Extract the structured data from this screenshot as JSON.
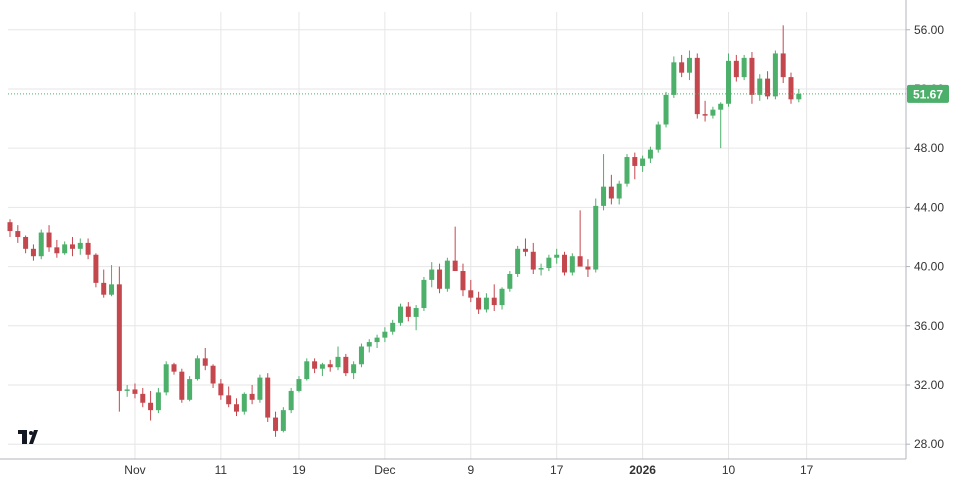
{
  "chart_data": {
    "type": "candlestick",
    "y_axis": {
      "min": 27.0,
      "max": 57.2,
      "ticks": [
        "28.00",
        "32.00",
        "36.00",
        "40.00",
        "44.00",
        "48.00",
        "52.00",
        "56.00"
      ],
      "tick_values": [
        28,
        32,
        36,
        40,
        44,
        48,
        52,
        56
      ],
      "position": "right"
    },
    "x_axis": {
      "labels": [
        "Nov",
        "11",
        "19",
        "Dec",
        "9",
        "17",
        "2026",
        "10",
        "17"
      ],
      "label_bar_index": [
        16,
        27,
        37,
        48,
        59,
        70,
        81,
        92,
        102
      ],
      "bold_labels": [
        "2026"
      ]
    },
    "last_price": {
      "label": "51.67",
      "value": 51.67,
      "color": "#4caf6a"
    },
    "colors": {
      "up": "#4caf6a",
      "down": "#c4474e",
      "grid": "#e6e6e6",
      "axis_text": "#333333"
    },
    "grid": true,
    "bars": [
      [
        43.0,
        43.2,
        42.0,
        42.4
      ],
      [
        42.4,
        42.8,
        41.6,
        42.0
      ],
      [
        42.0,
        42.1,
        40.9,
        41.2
      ],
      [
        41.2,
        41.5,
        40.4,
        40.7
      ],
      [
        40.7,
        42.5,
        40.5,
        42.3
      ],
      [
        42.3,
        42.8,
        41.0,
        41.3
      ],
      [
        41.3,
        41.8,
        40.6,
        40.9
      ],
      [
        40.9,
        41.7,
        40.8,
        41.5
      ],
      [
        41.5,
        42.0,
        40.7,
        41.2
      ],
      [
        41.2,
        41.9,
        40.8,
        41.6
      ],
      [
        41.6,
        41.9,
        40.5,
        40.8
      ],
      [
        40.8,
        40.9,
        38.6,
        38.9
      ],
      [
        38.9,
        39.8,
        37.9,
        38.1
      ],
      [
        38.1,
        40.1,
        38.0,
        38.8
      ],
      [
        38.8,
        40.0,
        30.2,
        31.6
      ],
      [
        31.6,
        32.0,
        31.2,
        31.7
      ],
      [
        31.7,
        32.1,
        31.1,
        31.4
      ],
      [
        31.4,
        31.8,
        30.5,
        30.8
      ],
      [
        30.8,
        31.6,
        29.6,
        30.3
      ],
      [
        30.3,
        31.8,
        30.1,
        31.5
      ],
      [
        31.5,
        33.6,
        31.3,
        33.4
      ],
      [
        33.4,
        33.5,
        32.7,
        32.9
      ],
      [
        32.9,
        33.1,
        30.8,
        31.0
      ],
      [
        31.0,
        32.6,
        30.9,
        32.4
      ],
      [
        32.4,
        34.0,
        32.3,
        33.8
      ],
      [
        33.8,
        34.5,
        33.0,
        33.3
      ],
      [
        33.3,
        33.4,
        31.8,
        32.1
      ],
      [
        32.1,
        32.4,
        31.0,
        31.3
      ],
      [
        31.3,
        31.9,
        30.5,
        30.7
      ],
      [
        30.7,
        31.1,
        29.9,
        30.2
      ],
      [
        30.2,
        31.5,
        30.0,
        31.4
      ],
      [
        31.4,
        32.0,
        30.7,
        31.0
      ],
      [
        31.0,
        32.7,
        30.8,
        32.5
      ],
      [
        32.5,
        32.8,
        29.5,
        29.8
      ],
      [
        29.8,
        30.2,
        28.5,
        28.9
      ],
      [
        28.9,
        30.5,
        28.8,
        30.3
      ],
      [
        30.3,
        31.8,
        30.1,
        31.6
      ],
      [
        31.6,
        32.6,
        31.5,
        32.4
      ],
      [
        32.4,
        33.8,
        32.3,
        33.6
      ],
      [
        33.6,
        33.8,
        32.8,
        33.1
      ],
      [
        33.1,
        33.5,
        32.6,
        33.4
      ],
      [
        33.4,
        33.7,
        32.9,
        33.2
      ],
      [
        33.2,
        34.6,
        33.0,
        33.9
      ],
      [
        33.9,
        34.1,
        32.6,
        32.8
      ],
      [
        32.8,
        33.6,
        32.4,
        33.4
      ],
      [
        33.4,
        34.8,
        33.2,
        34.6
      ],
      [
        34.6,
        35.1,
        34.2,
        34.9
      ],
      [
        34.9,
        35.4,
        34.5,
        35.2
      ],
      [
        35.2,
        35.9,
        34.9,
        35.6
      ],
      [
        35.6,
        36.4,
        35.4,
        36.2
      ],
      [
        36.2,
        37.5,
        36.0,
        37.3
      ],
      [
        37.3,
        37.6,
        36.3,
        36.6
      ],
      [
        36.6,
        37.4,
        35.7,
        37.2
      ],
      [
        37.2,
        39.3,
        37.0,
        39.1
      ],
      [
        39.1,
        40.3,
        38.6,
        39.8
      ],
      [
        39.8,
        40.2,
        38.2,
        38.5
      ],
      [
        38.5,
        40.6,
        38.3,
        40.4
      ],
      [
        40.4,
        42.7,
        40.2,
        39.7
      ],
      [
        39.7,
        40.2,
        38.0,
        38.4
      ],
      [
        38.4,
        39.1,
        37.6,
        37.9
      ],
      [
        37.9,
        38.3,
        36.8,
        37.1
      ],
      [
        37.1,
        38.2,
        36.9,
        37.9
      ],
      [
        37.9,
        38.8,
        37.0,
        37.4
      ],
      [
        37.4,
        38.6,
        37.1,
        38.5
      ],
      [
        38.5,
        39.7,
        38.3,
        39.5
      ],
      [
        39.5,
        41.4,
        39.3,
        41.2
      ],
      [
        41.2,
        41.9,
        40.7,
        41.0
      ],
      [
        41.0,
        41.6,
        39.5,
        39.8
      ],
      [
        39.8,
        40.2,
        39.4,
        39.9
      ],
      [
        39.9,
        40.8,
        39.7,
        40.6
      ],
      [
        40.6,
        41.2,
        40.2,
        40.8
      ],
      [
        40.8,
        41.0,
        39.4,
        39.6
      ],
      [
        39.6,
        40.9,
        39.4,
        40.7
      ],
      [
        40.7,
        43.8,
        40.5,
        40.0
      ],
      [
        40.0,
        40.5,
        39.3,
        39.8
      ],
      [
        39.8,
        44.6,
        39.6,
        44.1
      ],
      [
        44.1,
        47.6,
        43.8,
        45.4
      ],
      [
        45.4,
        46.2,
        44.2,
        44.6
      ],
      [
        44.6,
        45.8,
        44.2,
        45.6
      ],
      [
        45.6,
        47.6,
        45.4,
        47.4
      ],
      [
        47.4,
        47.7,
        45.9,
        46.8
      ],
      [
        46.8,
        47.5,
        46.4,
        47.3
      ],
      [
        47.3,
        48.1,
        47.0,
        47.9
      ],
      [
        47.9,
        49.8,
        47.7,
        49.6
      ],
      [
        49.6,
        51.8,
        49.4,
        51.6
      ],
      [
        51.6,
        54.2,
        51.4,
        53.8
      ],
      [
        53.8,
        54.3,
        52.8,
        53.1
      ],
      [
        53.1,
        54.6,
        52.6,
        54.1
      ],
      [
        54.1,
        54.4,
        50.0,
        50.3
      ],
      [
        50.3,
        51.2,
        49.8,
        50.2
      ],
      [
        50.2,
        50.8,
        50.0,
        50.6
      ],
      [
        50.6,
        51.1,
        48.0,
        51.0
      ],
      [
        51.0,
        54.4,
        50.8,
        53.9
      ],
      [
        53.9,
        54.3,
        52.5,
        52.8
      ],
      [
        52.8,
        54.3,
        52.6,
        54.1
      ],
      [
        54.1,
        54.5,
        51.0,
        51.6
      ],
      [
        51.6,
        53.0,
        51.2,
        52.7
      ],
      [
        52.7,
        53.2,
        51.3,
        51.5
      ],
      [
        51.5,
        54.6,
        51.3,
        54.4
      ],
      [
        54.4,
        56.3,
        52.4,
        52.8
      ],
      [
        52.8,
        53.1,
        51.0,
        51.3
      ],
      [
        51.3,
        52.0,
        51.1,
        51.67
      ]
    ]
  }
}
